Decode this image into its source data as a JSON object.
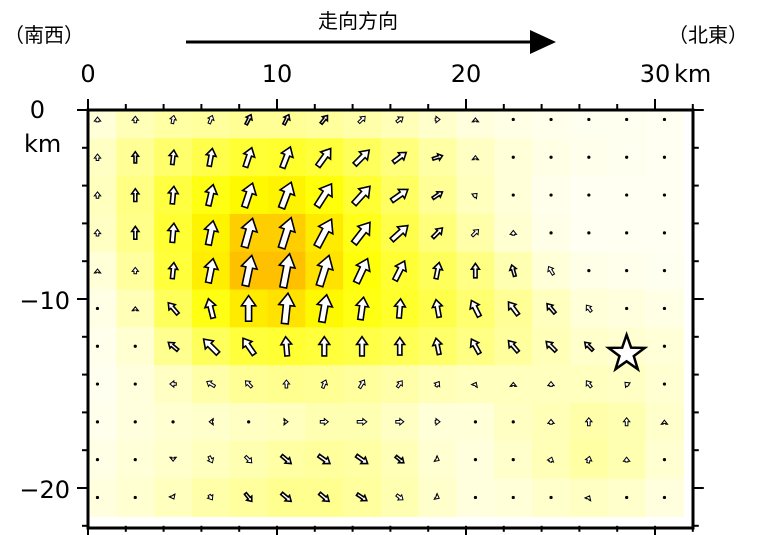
{
  "chart_data": {
    "type": "vector_field",
    "header": {
      "left_label": "（南西）",
      "center_label": "走向方向",
      "right_label": "（北東）"
    },
    "x_axis": {
      "unit": "km",
      "range": [
        0,
        32
      ],
      "ticks": [
        0,
        10,
        20,
        30
      ],
      "tick_labels": [
        "0",
        "10",
        "20",
        "30"
      ]
    },
    "y_axis": {
      "unit": "km",
      "range": [
        -22,
        0
      ],
      "ticks": [
        0,
        -10,
        -20
      ],
      "tick_labels": [
        "0",
        "−10",
        "−20"
      ]
    },
    "grid": {
      "x_centers_km": [
        0.5,
        2.5,
        4.5,
        6.5,
        8.5,
        10.5,
        12.5,
        14.5,
        16.5,
        18.5,
        20.5,
        22.5,
        24.5,
        26.5,
        28.5,
        30.5
      ],
      "y_centers_km": [
        -0.5,
        -2.5,
        -4.5,
        -6.5,
        -8.5,
        -10.5,
        -12.5,
        -14.5,
        -16.5,
        -18.5,
        -20.5
      ],
      "slip": [
        [
          0.12,
          0.22,
          0.28,
          0.3,
          0.32,
          0.32,
          0.3,
          0.26,
          0.22,
          0.16,
          0.1,
          0.08,
          0.06,
          0.05,
          0.05,
          0.04
        ],
        [
          0.18,
          0.32,
          0.45,
          0.55,
          0.62,
          0.64,
          0.6,
          0.5,
          0.4,
          0.28,
          0.18,
          0.12,
          0.08,
          0.06,
          0.05,
          0.04
        ],
        [
          0.2,
          0.38,
          0.58,
          0.72,
          0.8,
          0.82,
          0.75,
          0.62,
          0.48,
          0.32,
          0.2,
          0.12,
          0.06,
          0.04,
          0.04,
          0.04
        ],
        [
          0.18,
          0.36,
          0.62,
          0.82,
          0.95,
          0.95,
          0.85,
          0.7,
          0.55,
          0.4,
          0.26,
          0.14,
          0.07,
          0.04,
          0.04,
          0.04
        ],
        [
          0.12,
          0.3,
          0.6,
          0.84,
          1.0,
          1.0,
          0.88,
          0.75,
          0.62,
          0.5,
          0.38,
          0.24,
          0.12,
          0.07,
          0.06,
          0.05
        ],
        [
          0.08,
          0.22,
          0.5,
          0.72,
          0.85,
          0.88,
          0.8,
          0.72,
          0.65,
          0.55,
          0.44,
          0.32,
          0.2,
          0.12,
          0.1,
          0.08
        ],
        [
          0.06,
          0.14,
          0.34,
          0.5,
          0.6,
          0.62,
          0.6,
          0.56,
          0.52,
          0.46,
          0.38,
          0.3,
          0.22,
          0.16,
          0.14,
          0.12
        ],
        [
          0.05,
          0.1,
          0.18,
          0.26,
          0.32,
          0.34,
          0.33,
          0.3,
          0.26,
          0.22,
          0.2,
          0.2,
          0.2,
          0.2,
          0.18,
          0.14
        ],
        [
          0.06,
          0.1,
          0.14,
          0.16,
          0.18,
          0.2,
          0.24,
          0.24,
          0.18,
          0.12,
          0.12,
          0.18,
          0.22,
          0.26,
          0.24,
          0.16
        ],
        [
          0.08,
          0.12,
          0.16,
          0.2,
          0.24,
          0.28,
          0.3,
          0.28,
          0.22,
          0.14,
          0.1,
          0.16,
          0.22,
          0.28,
          0.24,
          0.14
        ],
        [
          0.1,
          0.14,
          0.2,
          0.26,
          0.3,
          0.34,
          0.34,
          0.3,
          0.24,
          0.16,
          0.1,
          0.12,
          0.16,
          0.18,
          0.16,
          0.1
        ]
      ],
      "vectors": [
        [
          [
            0,
            3
          ],
          [
            0,
            4
          ],
          [
            1,
            5
          ],
          [
            2,
            5
          ],
          [
            3,
            6
          ],
          [
            3,
            6
          ],
          [
            4,
            5
          ],
          [
            4,
            4
          ],
          [
            4,
            3
          ],
          [
            3,
            0
          ],
          [
            0,
            2
          ],
          [
            0,
            1
          ],
          [
            0,
            1
          ],
          [
            0,
            1
          ],
          [
            0,
            1
          ],
          [
            0,
            1
          ]
        ],
        [
          [
            0,
            4
          ],
          [
            0,
            7
          ],
          [
            1,
            9
          ],
          [
            2,
            11
          ],
          [
            4,
            12
          ],
          [
            5,
            13
          ],
          [
            8,
            11
          ],
          [
            9,
            9
          ],
          [
            8,
            6
          ],
          [
            6,
            2
          ],
          [
            0,
            2
          ],
          [
            0,
            1
          ],
          [
            0,
            1
          ],
          [
            0,
            1
          ],
          [
            0,
            1
          ],
          [
            0,
            1
          ]
        ],
        [
          [
            0,
            4
          ],
          [
            0,
            8
          ],
          [
            1,
            11
          ],
          [
            3,
            13
          ],
          [
            5,
            15
          ],
          [
            6,
            16
          ],
          [
            9,
            14
          ],
          [
            10,
            11
          ],
          [
            10,
            7
          ],
          [
            6,
            4
          ],
          [
            2,
            2
          ],
          [
            0,
            1
          ],
          [
            0,
            1
          ],
          [
            0,
            1
          ],
          [
            0,
            1
          ],
          [
            0,
            1
          ]
        ],
        [
          [
            0,
            4
          ],
          [
            0,
            8
          ],
          [
            1,
            12
          ],
          [
            3,
            15
          ],
          [
            5,
            18
          ],
          [
            6,
            19
          ],
          [
            9,
            17
          ],
          [
            10,
            13
          ],
          [
            10,
            9
          ],
          [
            6,
            6
          ],
          [
            4,
            4
          ],
          [
            0,
            3
          ],
          [
            -1,
            1
          ],
          [
            0,
            0
          ],
          [
            0,
            0
          ],
          [
            0,
            0
          ]
        ],
        [
          [
            0,
            2
          ],
          [
            0,
            4
          ],
          [
            1,
            10
          ],
          [
            3,
            15
          ],
          [
            4,
            19
          ],
          [
            4,
            21
          ],
          [
            6,
            19
          ],
          [
            7,
            15
          ],
          [
            6,
            12
          ],
          [
            2,
            10
          ],
          [
            0,
            9
          ],
          [
            -2,
            7
          ],
          [
            -3,
            5
          ],
          [
            -1,
            1
          ],
          [
            0,
            0
          ],
          [
            0,
            0
          ]
        ],
        [
          [
            0,
            1
          ],
          [
            0,
            2
          ],
          [
            -6,
            7
          ],
          [
            -3,
            12
          ],
          [
            0,
            16
          ],
          [
            2,
            19
          ],
          [
            3,
            17
          ],
          [
            2,
            14
          ],
          [
            1,
            12
          ],
          [
            -2,
            11
          ],
          [
            -5,
            10
          ],
          [
            -6,
            8
          ],
          [
            -5,
            6
          ],
          [
            -3,
            4
          ],
          [
            0,
            1
          ],
          [
            0,
            0
          ]
        ],
        [
          [
            0,
            1
          ],
          [
            0,
            1
          ],
          [
            -6,
            5
          ],
          [
            -9,
            9
          ],
          [
            -7,
            10
          ],
          [
            -1,
            12
          ],
          [
            0,
            12
          ],
          [
            0,
            12
          ],
          [
            0,
            11
          ],
          [
            -2,
            10
          ],
          [
            -5,
            9
          ],
          [
            -6,
            7
          ],
          [
            -6,
            6
          ],
          [
            -5,
            5
          ],
          [
            -4,
            3
          ],
          [
            0,
            1
          ]
        ],
        [
          [
            0,
            0
          ],
          [
            0,
            0
          ],
          [
            -4,
            0
          ],
          [
            -5,
            3
          ],
          [
            -4,
            4
          ],
          [
            0,
            5
          ],
          [
            2,
            5
          ],
          [
            3,
            5
          ],
          [
            3,
            4
          ],
          [
            2,
            3
          ],
          [
            1,
            2
          ],
          [
            0,
            2
          ],
          [
            0,
            3
          ],
          [
            -3,
            4
          ],
          [
            -2,
            2
          ],
          [
            0,
            1
          ]
        ],
        [
          [
            0,
            0
          ],
          [
            0,
            -1
          ],
          [
            -1,
            -1
          ],
          [
            -2,
            0
          ],
          [
            1,
            0
          ],
          [
            2,
            0
          ],
          [
            5,
            0
          ],
          [
            6,
            0
          ],
          [
            5,
            0
          ],
          [
            3,
            0
          ],
          [
            1,
            0
          ],
          [
            0,
            1
          ],
          [
            0,
            3
          ],
          [
            0,
            5
          ],
          [
            0,
            5
          ],
          [
            0,
            2
          ]
        ],
        [
          [
            0,
            0
          ],
          [
            0,
            -1
          ],
          [
            0,
            -2
          ],
          [
            2,
            -4
          ],
          [
            4,
            -4
          ],
          [
            6,
            -5
          ],
          [
            7,
            -5
          ],
          [
            7,
            -5
          ],
          [
            5,
            -4
          ],
          [
            2,
            -1
          ],
          [
            0,
            0
          ],
          [
            1,
            1
          ],
          [
            1,
            3
          ],
          [
            1,
            4
          ],
          [
            0,
            3
          ],
          [
            0,
            1
          ]
        ],
        [
          [
            0,
            0
          ],
          [
            0,
            0
          ],
          [
            1,
            -2
          ],
          [
            2,
            -3
          ],
          [
            4,
            -5
          ],
          [
            6,
            -5
          ],
          [
            6,
            -5
          ],
          [
            6,
            -4
          ],
          [
            4,
            -3
          ],
          [
            2,
            -1
          ],
          [
            0,
            0
          ],
          [
            0,
            0
          ],
          [
            1,
            1
          ],
          [
            1,
            2
          ],
          [
            0,
            1
          ],
          [
            0,
            0
          ]
        ]
      ]
    },
    "hypocenter": {
      "x_km": 28.5,
      "y_km": -12.9,
      "symbol": "star"
    },
    "colors": {
      "low": "#ffffff",
      "mid": "#ffff00",
      "high": "#ffc000"
    }
  }
}
